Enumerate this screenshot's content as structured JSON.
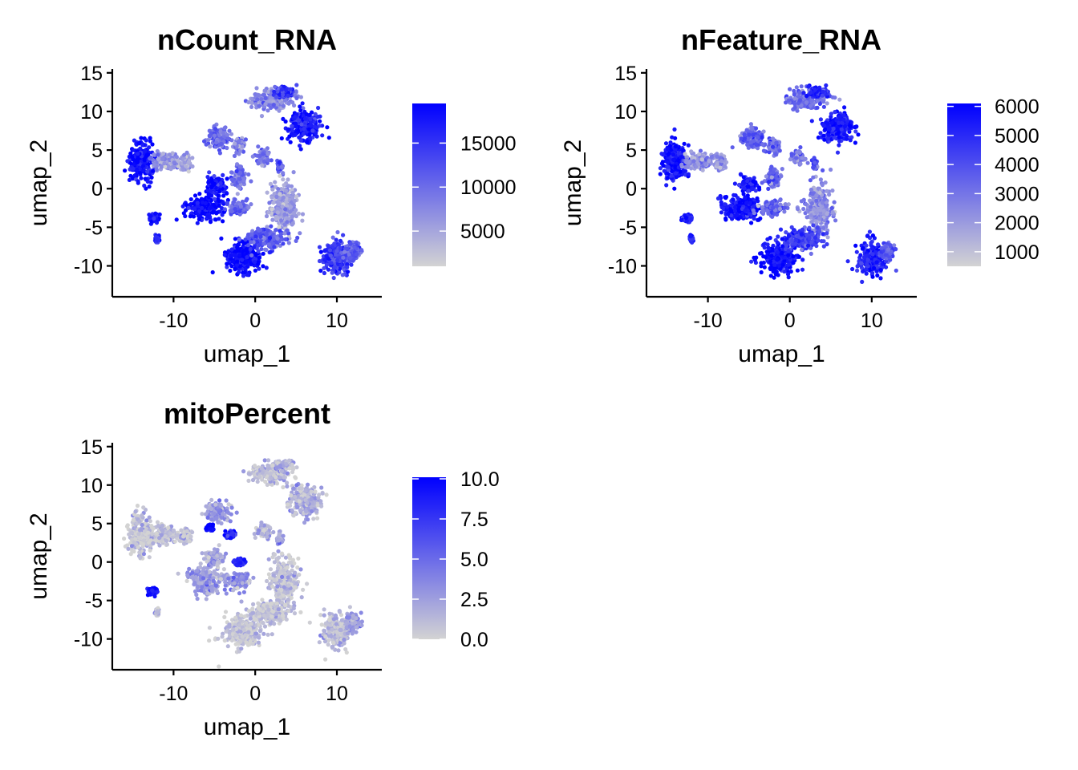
{
  "colors": {
    "low": "#d3d3d3",
    "high": "#0000ff",
    "axis": "#000000",
    "background": "#ffffff"
  },
  "chart_data": [
    {
      "type": "scatter",
      "title": "nCount_RNA",
      "xlabel": "umap_1",
      "ylabel": "umap_2",
      "xlim": [
        -17.5,
        15.5
      ],
      "ylim": [
        -14,
        15.5
      ],
      "xticks": [
        -10,
        0,
        10
      ],
      "yticks": [
        15,
        10,
        5,
        0,
        -5,
        -10
      ],
      "xtick_labels": [
        "-10",
        "0",
        "10"
      ],
      "ytick_labels": [
        "15",
        "10",
        "5",
        "0",
        "-5",
        "-10"
      ],
      "legend": {
        "position": "right",
        "range": [
          1000,
          19500
        ],
        "ticks": [
          15000,
          10000,
          5000
        ],
        "tick_labels": [
          "15000",
          "10000",
          "5000"
        ]
      },
      "grid": false,
      "clusters": [
        {
          "center": [
            -14,
            3.5
          ],
          "spread": [
            1.3,
            2.4
          ],
          "level": 0.95
        },
        {
          "center": [
            -11,
            3.5
          ],
          "spread": [
            1.6,
            1.0
          ],
          "level": 0.3
        },
        {
          "center": [
            -8.5,
            3.3
          ],
          "spread": [
            0.6,
            0.9
          ],
          "level": 0.25
        },
        {
          "center": [
            -12.5,
            -3.8
          ],
          "spread": [
            0.6,
            0.5
          ],
          "level": 0.85
        },
        {
          "center": [
            -12,
            -6.5
          ],
          "spread": [
            0.2,
            0.4
          ],
          "level": 0.8
        },
        {
          "center": [
            -6,
            -2.5
          ],
          "spread": [
            2.0,
            1.5
          ],
          "level": 0.95
        },
        {
          "center": [
            -5,
            0.5
          ],
          "spread": [
            1.0,
            1.0
          ],
          "level": 0.9
        },
        {
          "center": [
            -2,
            -2.5
          ],
          "spread": [
            1.3,
            0.8
          ],
          "level": 0.5
        },
        {
          "center": [
            -4.5,
            6.5
          ],
          "spread": [
            1.3,
            1.2
          ],
          "level": 0.5
        },
        {
          "center": [
            -2,
            5.5
          ],
          "spread": [
            0.6,
            0.9
          ],
          "level": 0.4
        },
        {
          "center": [
            -2,
            1.5
          ],
          "spread": [
            0.8,
            1.2
          ],
          "level": 0.45
        },
        {
          "center": [
            1,
            4.0
          ],
          "spread": [
            0.8,
            0.8
          ],
          "level": 0.4
        },
        {
          "center": [
            3,
            3.0
          ],
          "spread": [
            0.3,
            0.6
          ],
          "level": 0.6
        },
        {
          "center": [
            2,
            11.5
          ],
          "spread": [
            2.2,
            1.1
          ],
          "level": 0.35
        },
        {
          "center": [
            3.5,
            12.5
          ],
          "spread": [
            1.2,
            0.6
          ],
          "level": 0.75
        },
        {
          "center": [
            6,
            8.0
          ],
          "spread": [
            1.8,
            1.8
          ],
          "level": 0.9
        },
        {
          "center": [
            3.5,
            -2.5
          ],
          "spread": [
            1.5,
            2.8
          ],
          "level": 0.25
        },
        {
          "center": [
            -1.5,
            -9.0
          ],
          "spread": [
            2.0,
            1.8
          ],
          "level": 0.95
        },
        {
          "center": [
            1.5,
            -6.5
          ],
          "spread": [
            2.2,
            1.2
          ],
          "level": 0.6
        },
        {
          "center": [
            10,
            -9.0
          ],
          "spread": [
            1.6,
            2.0
          ],
          "level": 0.7
        },
        {
          "center": [
            12,
            -8.0
          ],
          "spread": [
            0.8,
            1.0
          ],
          "level": 0.55
        }
      ]
    },
    {
      "type": "scatter",
      "title": "nFeature_RNA",
      "xlabel": "umap_1",
      "ylabel": "umap_2",
      "xlim": [
        -17.5,
        15.5
      ],
      "ylim": [
        -14,
        15.5
      ],
      "xticks": [
        -10,
        0,
        10
      ],
      "yticks": [
        15,
        10,
        5,
        0,
        -5,
        -10
      ],
      "xtick_labels": [
        "-10",
        "0",
        "10"
      ],
      "ytick_labels": [
        "15",
        "10",
        "5",
        "0",
        "-5",
        "-10"
      ],
      "legend": {
        "position": "right",
        "range": [
          500,
          6100
        ],
        "ticks": [
          6000,
          5000,
          4000,
          3000,
          2000,
          1000
        ],
        "tick_labels": [
          "6000",
          "5000",
          "4000",
          "3000",
          "2000",
          "1000"
        ]
      },
      "grid": false,
      "clusters": [
        {
          "center": [
            -14,
            3.5
          ],
          "spread": [
            1.3,
            2.4
          ],
          "level": 0.9
        },
        {
          "center": [
            -11,
            3.5
          ],
          "spread": [
            1.6,
            1.0
          ],
          "level": 0.35
        },
        {
          "center": [
            -8.5,
            3.3
          ],
          "spread": [
            0.6,
            0.9
          ],
          "level": 0.3
        },
        {
          "center": [
            -12.5,
            -3.8
          ],
          "spread": [
            0.6,
            0.5
          ],
          "level": 0.85
        },
        {
          "center": [
            -12,
            -6.5
          ],
          "spread": [
            0.2,
            0.4
          ],
          "level": 0.8
        },
        {
          "center": [
            -6,
            -2.5
          ],
          "spread": [
            2.0,
            1.5
          ],
          "level": 0.95
        },
        {
          "center": [
            -5,
            0.5
          ],
          "spread": [
            1.0,
            1.0
          ],
          "level": 0.9
        },
        {
          "center": [
            -2,
            -2.5
          ],
          "spread": [
            1.3,
            0.8
          ],
          "level": 0.5
        },
        {
          "center": [
            -4.5,
            6.5
          ],
          "spread": [
            1.3,
            1.2
          ],
          "level": 0.55
        },
        {
          "center": [
            -2,
            5.5
          ],
          "spread": [
            0.6,
            0.9
          ],
          "level": 0.45
        },
        {
          "center": [
            -2,
            1.5
          ],
          "spread": [
            0.8,
            1.2
          ],
          "level": 0.5
        },
        {
          "center": [
            1,
            4.0
          ],
          "spread": [
            0.8,
            0.8
          ],
          "level": 0.45
        },
        {
          "center": [
            3,
            3.0
          ],
          "spread": [
            0.3,
            0.6
          ],
          "level": 0.65
        },
        {
          "center": [
            2,
            11.5
          ],
          "spread": [
            2.2,
            1.1
          ],
          "level": 0.5
        },
        {
          "center": [
            3.5,
            12.5
          ],
          "spread": [
            1.2,
            0.6
          ],
          "level": 0.85
        },
        {
          "center": [
            6,
            8.0
          ],
          "spread": [
            1.8,
            1.8
          ],
          "level": 0.9
        },
        {
          "center": [
            3.5,
            -2.5
          ],
          "spread": [
            1.5,
            2.8
          ],
          "level": 0.35
        },
        {
          "center": [
            -1.5,
            -9.0
          ],
          "spread": [
            2.0,
            1.8
          ],
          "level": 0.95
        },
        {
          "center": [
            1.5,
            -6.5
          ],
          "spread": [
            2.2,
            1.2
          ],
          "level": 0.7
        },
        {
          "center": [
            10,
            -9.0
          ],
          "spread": [
            1.6,
            2.0
          ],
          "level": 0.85
        },
        {
          "center": [
            12,
            -8.0
          ],
          "spread": [
            0.8,
            1.0
          ],
          "level": 0.6
        }
      ]
    },
    {
      "type": "scatter",
      "title": "mitoPercent",
      "xlabel": "umap_1",
      "ylabel": "umap_2",
      "xlim": [
        -17.5,
        15.5
      ],
      "ylim": [
        -14,
        15.5
      ],
      "xticks": [
        -10,
        0,
        10
      ],
      "yticks": [
        15,
        10,
        5,
        0,
        -5,
        -10
      ],
      "xtick_labels": [
        "-10",
        "0",
        "10"
      ],
      "ytick_labels": [
        "15",
        "10",
        "5",
        "0",
        "-5",
        "-10"
      ],
      "legend": {
        "position": "right",
        "range": [
          0,
          10.1
        ],
        "ticks": [
          10,
          7.5,
          5,
          2.5,
          0
        ],
        "tick_labels": [
          "10.0",
          "7.5",
          "5.0",
          "2.5",
          "0.0"
        ]
      },
      "grid": false,
      "clusters": [
        {
          "center": [
            -14,
            3.5
          ],
          "spread": [
            1.3,
            2.4
          ],
          "level": 0.05
        },
        {
          "center": [
            -11,
            3.5
          ],
          "spread": [
            1.6,
            1.0
          ],
          "level": 0.08
        },
        {
          "center": [
            -8.5,
            3.3
          ],
          "spread": [
            0.6,
            0.9
          ],
          "level": 0.08
        },
        {
          "center": [
            -12.5,
            -3.8
          ],
          "spread": [
            0.6,
            0.5
          ],
          "level": 0.95
        },
        {
          "center": [
            -12,
            -6.5
          ],
          "spread": [
            0.2,
            0.4
          ],
          "level": 0.15
        },
        {
          "center": [
            -6,
            -2.5
          ],
          "spread": [
            2.0,
            1.5
          ],
          "level": 0.25
        },
        {
          "center": [
            -5,
            0.5
          ],
          "spread": [
            1.0,
            1.0
          ],
          "level": 0.2
        },
        {
          "center": [
            -2,
            -2.5
          ],
          "spread": [
            1.3,
            0.8
          ],
          "level": 0.3
        },
        {
          "center": [
            -5.5,
            4.5
          ],
          "spread": [
            0.5,
            0.4
          ],
          "level": 0.95
        },
        {
          "center": [
            -3,
            3.5
          ],
          "spread": [
            0.5,
            0.4
          ],
          "level": 0.9
        },
        {
          "center": [
            -2,
            0.0
          ],
          "spread": [
            0.6,
            0.5
          ],
          "level": 0.85
        },
        {
          "center": [
            -4.5,
            6.5
          ],
          "spread": [
            1.3,
            1.2
          ],
          "level": 0.3
        },
        {
          "center": [
            1,
            4.0
          ],
          "spread": [
            0.8,
            0.8
          ],
          "level": 0.15
        },
        {
          "center": [
            3,
            3.0
          ],
          "spread": [
            0.3,
            0.6
          ],
          "level": 0.2
        },
        {
          "center": [
            2,
            11.5
          ],
          "spread": [
            2.2,
            1.1
          ],
          "level": 0.1
        },
        {
          "center": [
            3.5,
            12.5
          ],
          "spread": [
            1.2,
            0.6
          ],
          "level": 0.15
        },
        {
          "center": [
            6,
            8.0
          ],
          "spread": [
            1.8,
            1.8
          ],
          "level": 0.15
        },
        {
          "center": [
            3.5,
            -2.5
          ],
          "spread": [
            1.5,
            2.8
          ],
          "level": 0.08
        },
        {
          "center": [
            -1.5,
            -9.0
          ],
          "spread": [
            2.0,
            1.8
          ],
          "level": 0.05
        },
        {
          "center": [
            1.5,
            -6.5
          ],
          "spread": [
            2.2,
            1.2
          ],
          "level": 0.05
        },
        {
          "center": [
            10,
            -9.0
          ],
          "spread": [
            1.6,
            2.0
          ],
          "level": 0.12
        },
        {
          "center": [
            12,
            -8.0
          ],
          "spread": [
            0.8,
            1.0
          ],
          "level": 0.25
        }
      ]
    }
  ]
}
